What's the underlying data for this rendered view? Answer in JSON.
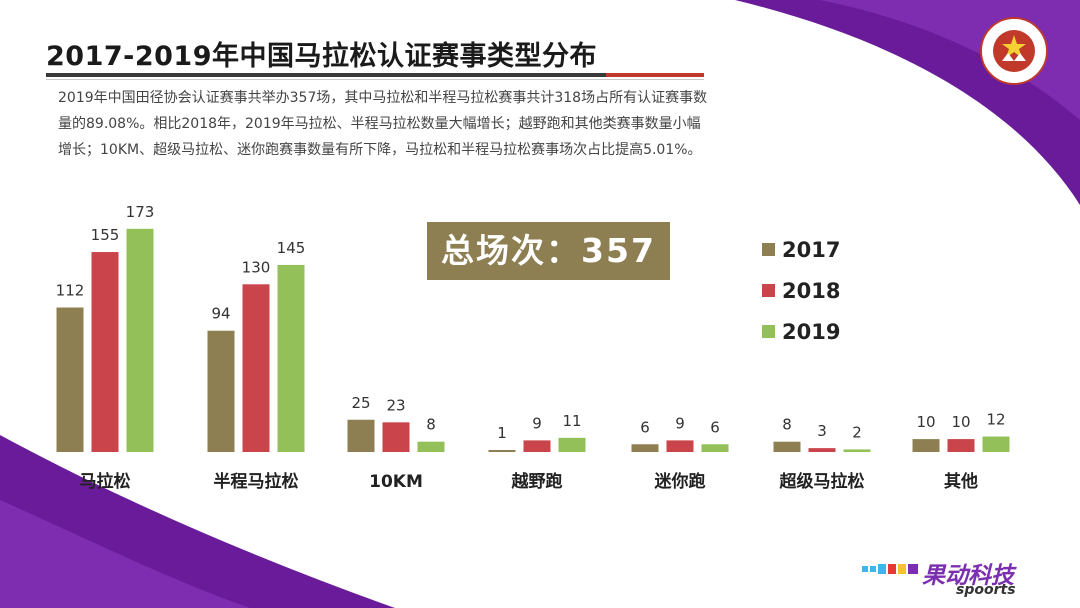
{
  "slide": {
    "title": "2017-2019年中国马拉松认证赛事类型分布",
    "description": "2019年中国田径协会认证赛事共举办357场，其中马拉松和半程马拉松赛事共计318场占所有认证赛事数量的89.08%。相比2018年，2019年马拉松、半程马拉松数量大幅增长；越野跑和其他类赛事数量小幅增长；10KM、超级马拉松、迷你跑赛事数量有所下降，马拉松和半程马拉松赛事场次占比提高5.01%。",
    "total_label": "总场次：357",
    "logo_icon": "chinese-athletics-association-logo",
    "brand_cn": "果动科技",
    "brand_en": "spoorts"
  },
  "colors": {
    "2017": "#8d7f52",
    "2018": "#c9444b",
    "2019": "#94c05a",
    "purple": "#6a1b9a"
  },
  "chart_data": {
    "type": "bar",
    "categories": [
      "马拉松",
      "半程马拉松",
      "10KM",
      "越野跑",
      "迷你跑",
      "超级马拉松",
      "其他"
    ],
    "series": [
      {
        "name": "2017",
        "values": [
          112,
          94,
          25,
          1,
          6,
          8,
          10
        ]
      },
      {
        "name": "2018",
        "values": [
          155,
          130,
          23,
          9,
          9,
          3,
          10
        ]
      },
      {
        "name": "2019",
        "values": [
          173,
          145,
          8,
          11,
          6,
          2,
          12
        ]
      }
    ],
    "legend_position": "right",
    "grid": false,
    "axis_visible": false
  }
}
